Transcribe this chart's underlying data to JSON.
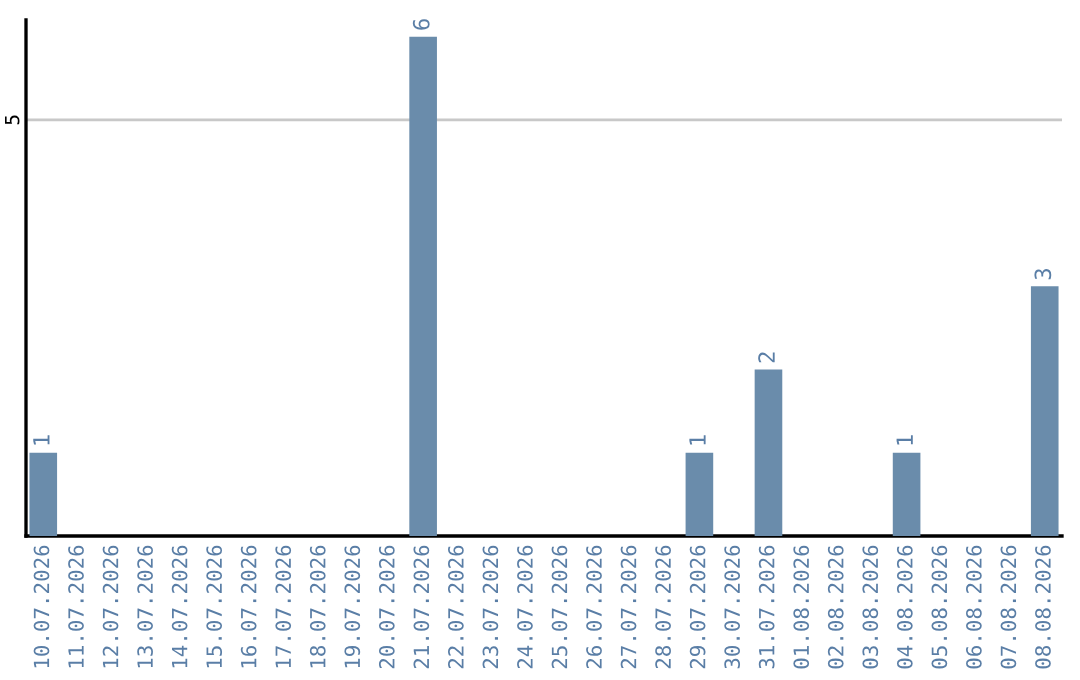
{
  "chart_data": {
    "type": "bar",
    "categories": [
      "10.07.2026",
      "11.07.2026",
      "12.07.2026",
      "13.07.2026",
      "14.07.2026",
      "15.07.2026",
      "16.07.2026",
      "17.07.2026",
      "18.07.2026",
      "19.07.2026",
      "20.07.2026",
      "21.07.2026",
      "22.07.2026",
      "23.07.2026",
      "24.07.2026",
      "25.07.2026",
      "26.07.2026",
      "27.07.2026",
      "28.07.2026",
      "29.07.2026",
      "30.07.2026",
      "31.07.2026",
      "01.08.2026",
      "02.08.2026",
      "03.08.2026",
      "04.08.2026",
      "05.08.2026",
      "06.08.2026",
      "07.08.2026",
      "08.08.2026"
    ],
    "values": [
      1,
      0,
      0,
      0,
      0,
      0,
      0,
      0,
      0,
      0,
      0,
      6,
      0,
      0,
      0,
      0,
      0,
      0,
      0,
      1,
      0,
      2,
      0,
      0,
      0,
      1,
      0,
      0,
      0,
      3
    ],
    "value_labels": [
      "1",
      null,
      null,
      null,
      null,
      null,
      null,
      null,
      null,
      null,
      null,
      "6",
      null,
      null,
      null,
      null,
      null,
      null,
      null,
      "1",
      null,
      "2",
      null,
      null,
      null,
      "1",
      null,
      null,
      null,
      "3"
    ],
    "color": "#6a8cab",
    "ylim": [
      0,
      6.2
    ],
    "yticks": [
      5
    ],
    "grid": "y"
  }
}
